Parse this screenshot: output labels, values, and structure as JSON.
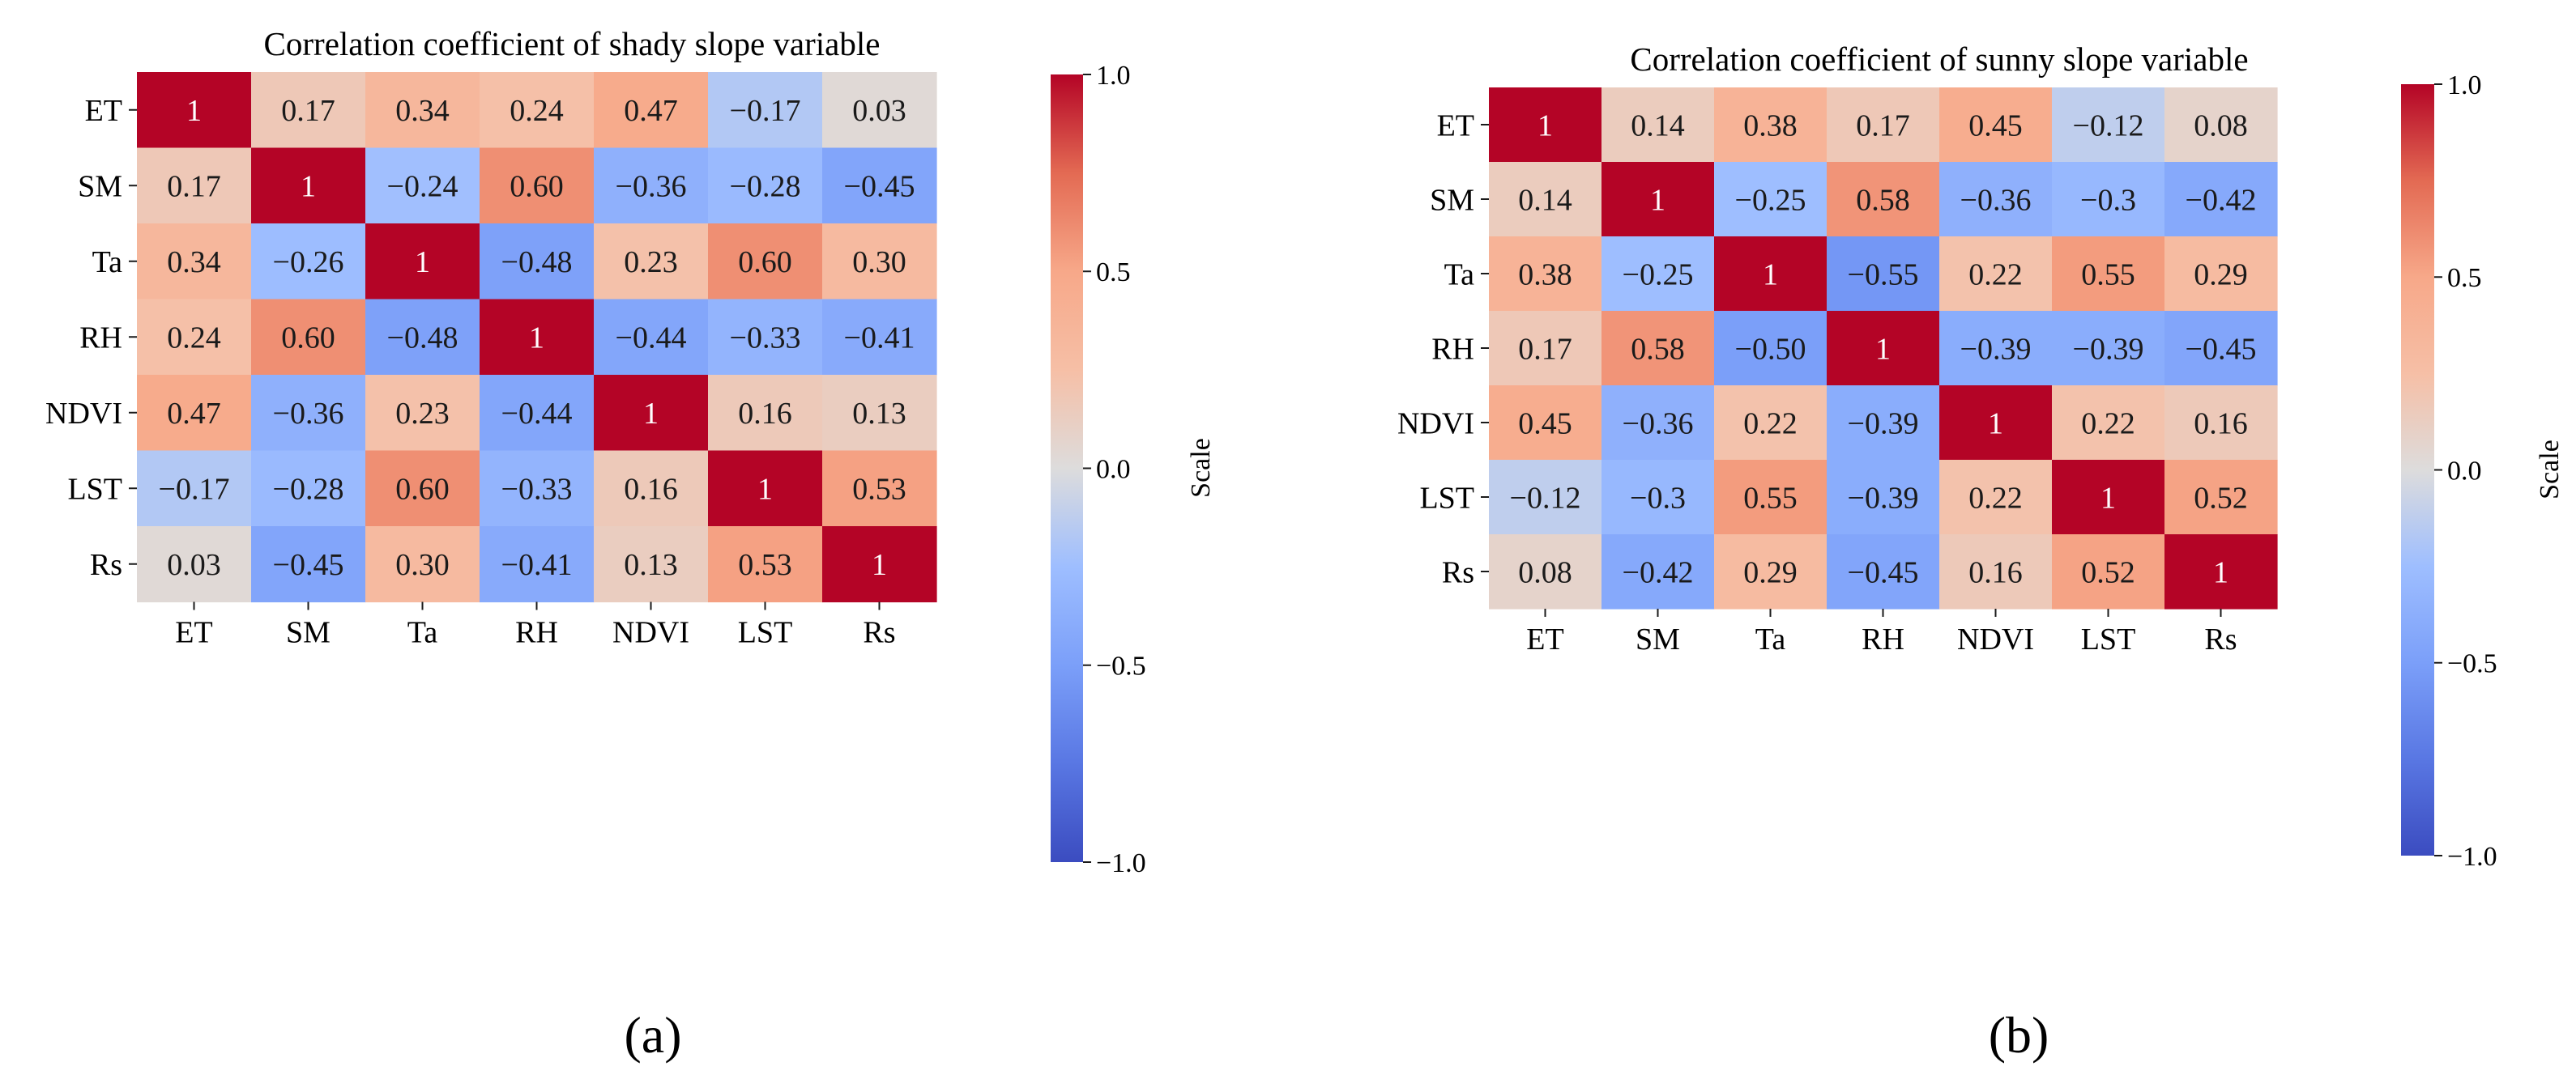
{
  "figure": {
    "panel_labels": [
      "(a)",
      "(b)"
    ]
  },
  "chart_data": [
    {
      "type": "heatmap",
      "title": "Correlation coefficient of shady slope variable",
      "variables": [
        "ET",
        "SM",
        "Ta",
        "RH",
        "NDVI",
        "LST",
        "Rs"
      ],
      "values": [
        [
          1,
          0.17,
          0.34,
          0.24,
          0.47,
          -0.17,
          0.03
        ],
        [
          0.17,
          1,
          -0.24,
          0.6,
          -0.36,
          -0.28,
          -0.45
        ],
        [
          0.34,
          -0.26,
          1,
          -0.48,
          0.23,
          0.6,
          0.3
        ],
        [
          0.24,
          0.6,
          -0.48,
          1,
          -0.44,
          -0.33,
          -0.41
        ],
        [
          0.47,
          -0.36,
          0.23,
          -0.44,
          1,
          0.16,
          0.13
        ],
        [
          -0.17,
          -0.28,
          0.6,
          -0.33,
          0.16,
          1,
          0.53
        ],
        [
          0.03,
          -0.45,
          0.3,
          -0.41,
          0.13,
          0.53,
          1
        ]
      ],
      "labels": [
        [
          "1",
          "0.17",
          "0.34",
          "0.24",
          "0.47",
          "−0.17",
          "0.03"
        ],
        [
          "0.17",
          "1",
          "−0.24",
          "0.60",
          "−0.36",
          "−0.28",
          "−0.45"
        ],
        [
          "0.34",
          "−0.26",
          "1",
          "−0.48",
          "0.23",
          "0.60",
          "0.30"
        ],
        [
          "0.24",
          "0.60",
          "−0.48",
          "1",
          "−0.44",
          "−0.33",
          "−0.41"
        ],
        [
          "0.47",
          "−0.36",
          "0.23",
          "−0.44",
          "1",
          "0.16",
          "0.13"
        ],
        [
          "−0.17",
          "−0.28",
          "0.60",
          "−0.33",
          "0.16",
          "1",
          "0.53"
        ],
        [
          "0.03",
          "−0.45",
          "0.30",
          "−0.41",
          "0.13",
          "0.53",
          "1"
        ]
      ],
      "colorbar": {
        "label": "Scale",
        "vmin": -1.0,
        "vmax": 1.0,
        "ticks": [
          1.0,
          0.5,
          0.0,
          -0.5,
          -1.0
        ],
        "tick_labels": [
          "1.0",
          "0.5",
          "0.0",
          "−0.5",
          "−1.0"
        ]
      },
      "colormap": "coolwarm"
    },
    {
      "type": "heatmap",
      "title": "Correlation coefficient of sunny slope variable",
      "variables": [
        "ET",
        "SM",
        "Ta",
        "RH",
        "NDVI",
        "LST",
        "Rs"
      ],
      "values": [
        [
          1,
          0.14,
          0.38,
          0.17,
          0.45,
          -0.12,
          0.08
        ],
        [
          0.14,
          1,
          -0.25,
          0.58,
          -0.36,
          -0.3,
          -0.42
        ],
        [
          0.38,
          -0.25,
          1,
          -0.55,
          0.22,
          0.55,
          0.29
        ],
        [
          0.17,
          0.58,
          -0.5,
          1,
          -0.39,
          -0.39,
          -0.45
        ],
        [
          0.45,
          -0.36,
          0.22,
          -0.39,
          1,
          0.22,
          0.16
        ],
        [
          -0.12,
          -0.3,
          0.55,
          -0.39,
          0.22,
          1,
          0.52
        ],
        [
          0.08,
          -0.42,
          0.29,
          -0.45,
          0.16,
          0.52,
          1
        ]
      ],
      "labels": [
        [
          "1",
          "0.14",
          "0.38",
          "0.17",
          "0.45",
          "−0.12",
          "0.08"
        ],
        [
          "0.14",
          "1",
          "−0.25",
          "0.58",
          "−0.36",
          "−0.3",
          "−0.42"
        ],
        [
          "0.38",
          "−0.25",
          "1",
          "−0.55",
          "0.22",
          "0.55",
          "0.29"
        ],
        [
          "0.17",
          "0.58",
          "−0.50",
          "1",
          "−0.39",
          "−0.39",
          "−0.45"
        ],
        [
          "0.45",
          "−0.36",
          "0.22",
          "−0.39",
          "1",
          "0.22",
          "0.16"
        ],
        [
          "−0.12",
          "−0.3",
          "0.55",
          "−0.39",
          "0.22",
          "1",
          "0.52"
        ],
        [
          "0.08",
          "−0.42",
          "0.29",
          "−0.45",
          "0.16",
          "0.52",
          "1"
        ]
      ],
      "colorbar": {
        "label": "Scale",
        "vmin": -1.0,
        "vmax": 1.0,
        "ticks": [
          1.0,
          0.5,
          0.0,
          -0.5,
          -1.0
        ],
        "tick_labels": [
          "1.0",
          "0.5",
          "0.0",
          "−0.5",
          "−1.0"
        ]
      },
      "colormap": "coolwarm"
    }
  ]
}
